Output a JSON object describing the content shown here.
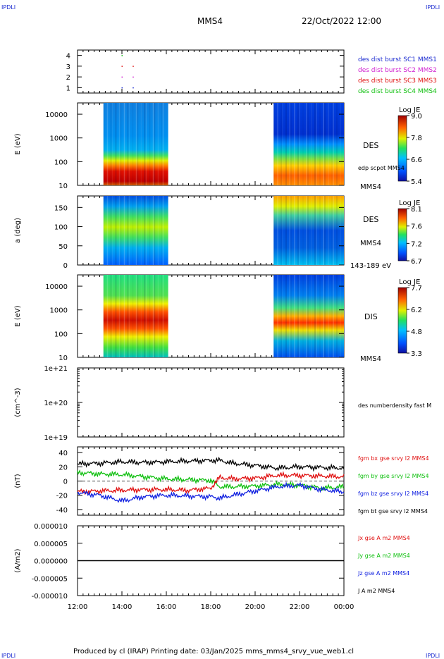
{
  "header": {
    "corner_tl": "IPDLI",
    "corner_tr": "IPDLI",
    "corner_bl": "IPDLI",
    "corner_br": "IPDLI",
    "spacecraft": "MMS4",
    "date": "22/Oct/2022 12:00"
  },
  "footer": {
    "text": "Produced by cl (IRAP)   Printing date: 03/Jan/2025   mms_mms4_srvy_vue_web1.cl"
  },
  "colors": {
    "c1": "#1a2ad0",
    "c2": "#d020d0",
    "c3": "#e01010",
    "c4": "#10c010",
    "bx": "#e01010",
    "by": "#10c010",
    "bz": "#1020e0",
    "bt": "#000000"
  },
  "chart_data": [
    {
      "type": "scatter",
      "panel": "burst",
      "y_ticks": [
        "1",
        "2",
        "3",
        "4"
      ],
      "ylim": [
        0.5,
        4.5
      ],
      "legend": [
        {
          "text": "des dist burst SC1 MMS1",
          "color": "#1a2ad0"
        },
        {
          "text": "des dist burst SC2 MMS2",
          "color": "#d020d0"
        },
        {
          "text": "des dist burst SC3 MMS3",
          "color": "#e01010"
        },
        {
          "text": "des dist burst SC4 MMS4",
          "color": "#10c010"
        }
      ],
      "points": [
        {
          "x": "14:00",
          "y": 4,
          "color": "#10c010"
        },
        {
          "x": "14:00",
          "y": 3,
          "color": "#e01010"
        },
        {
          "x": "14:30",
          "y": 3,
          "color": "#e01010"
        },
        {
          "x": "14:00",
          "y": 2,
          "color": "#d020d0"
        },
        {
          "x": "14:30",
          "y": 2,
          "color": "#d020d0"
        },
        {
          "x": "14:00",
          "y": 1,
          "color": "#1a2ad0"
        },
        {
          "x": "14:30",
          "y": 1,
          "color": "#1a2ad0"
        }
      ]
    },
    {
      "type": "heatmap",
      "panel": "des_energy",
      "ylabel": "E (eV)",
      "y_ticks": [
        "10",
        "100",
        "1000",
        "10000"
      ],
      "log_y": true,
      "ylim": [
        10,
        30000
      ],
      "label_right": "DES",
      "label_right2": "edp scpot MMS4",
      "label_bottom": "MMS4",
      "colorbar": {
        "title": "Log JE",
        "ticks": [
          "9.0",
          "7.8",
          "6.6",
          "5.4"
        ],
        "range": [
          5.4,
          9.0
        ]
      },
      "segments": [
        {
          "start": "13:10",
          "end": "16:05"
        },
        {
          "start": "20:50",
          "end": "00:00"
        }
      ]
    },
    {
      "type": "heatmap",
      "panel": "des_pitch",
      "ylabel": "a (deg)",
      "y_ticks": [
        "0",
        "50",
        "100",
        "150"
      ],
      "ylim": [
        0,
        180
      ],
      "label_right": "DES",
      "label_right2": "MMS4",
      "label_bottom": "143-189 eV",
      "colorbar": {
        "title": "Log JE",
        "ticks": [
          "8.1",
          "7.6",
          "7.2",
          "6.7"
        ],
        "range": [
          6.7,
          8.1
        ]
      },
      "segments": [
        {
          "start": "13:10",
          "end": "16:05"
        },
        {
          "start": "20:50",
          "end": "00:00"
        }
      ]
    },
    {
      "type": "heatmap",
      "panel": "dis_energy",
      "ylabel": "E (eV)",
      "y_ticks": [
        "10",
        "100",
        "1000",
        "10000"
      ],
      "log_y": true,
      "ylim": [
        10,
        30000
      ],
      "label_right": "DIS",
      "label_bottom": "MMS4",
      "colorbar": {
        "title": "Log JE",
        "ticks": [
          "7.7",
          "6.2",
          "4.8",
          "3.3"
        ],
        "range": [
          3.3,
          7.7
        ]
      },
      "segments": [
        {
          "start": "13:10",
          "end": "16:05"
        },
        {
          "start": "20:50",
          "end": "00:00"
        }
      ]
    },
    {
      "type": "line",
      "panel": "density",
      "ylabel": "(cm^-3)",
      "y_ticks": [
        "1e+19",
        "1e+20",
        "1e+21"
      ],
      "log_y": true,
      "legend": [
        {
          "text": "des numberdensity fast M",
          "color": "#000000"
        }
      ],
      "series": []
    },
    {
      "type": "line",
      "panel": "fgm",
      "ylabel": "(nT)",
      "y_ticks": [
        "-40",
        "-20",
        "0",
        "20",
        "40"
      ],
      "ylim": [
        -48,
        48
      ],
      "legend": [
        {
          "text": "fgm bx gse srvy l2 MMS4",
          "color": "#e01010"
        },
        {
          "text": "fgm by gse srvy l2 MMS4",
          "color": "#10c010"
        },
        {
          "text": "fgm bz gse srvy l2 MMS4",
          "color": "#1020e0"
        },
        {
          "text": "fgm bt gse srvy l2 MMS4",
          "color": "#000000"
        }
      ],
      "series": [
        {
          "name": "bx",
          "color": "#e01010",
          "x": [
            12,
            13,
            14,
            15,
            16,
            17,
            18,
            18.4,
            19,
            20,
            21,
            22,
            23,
            24
          ],
          "values": [
            -15,
            -14,
            -13,
            -12,
            -12,
            -13,
            -10,
            5,
            3,
            4,
            8,
            8,
            7,
            6
          ]
        },
        {
          "name": "by",
          "color": "#10c010",
          "x": [
            12,
            13,
            14,
            15,
            16,
            17,
            18,
            18.4,
            19,
            20,
            21,
            22,
            23,
            24
          ],
          "values": [
            12,
            10,
            9,
            6,
            3,
            2,
            1,
            -8,
            -8,
            -7,
            -5,
            -6,
            -10,
            -8
          ]
        },
        {
          "name": "bz",
          "color": "#1020e0",
          "x": [
            12,
            13,
            14,
            15,
            16,
            17,
            18,
            18.4,
            19,
            20,
            21,
            22,
            23,
            24
          ],
          "values": [
            -16,
            -20,
            -28,
            -22,
            -20,
            -21,
            -22,
            -24,
            -20,
            -14,
            -8,
            -6,
            -12,
            -15
          ]
        },
        {
          "name": "bt",
          "color": "#000000",
          "x": [
            12,
            13,
            14,
            15,
            16,
            17,
            18,
            18.4,
            19,
            20,
            21,
            22,
            23,
            24
          ],
          "values": [
            24,
            25,
            27,
            26,
            27,
            28,
            29,
            29,
            25,
            22,
            18,
            20,
            19,
            18
          ]
        }
      ]
    },
    {
      "type": "line",
      "panel": "current",
      "ylabel": "(A/m2)",
      "y_ticks": [
        "-0.000010",
        "-0.000005",
        "0.000000",
        "0.000005",
        "0.000010"
      ],
      "ylim": [
        -1e-05,
        1e-05
      ],
      "legend": [
        {
          "text": "Jx gse A m2 MMS4",
          "color": "#e01010"
        },
        {
          "text": "Jy gse A m2 MMS4",
          "color": "#10c010"
        },
        {
          "text": "Jz gse A m2 MMS4",
          "color": "#1020e0"
        },
        {
          "text": "J A m2 MMS4",
          "color": "#000000"
        }
      ],
      "series": [
        {
          "name": "J",
          "color": "#000000",
          "x": [
            12,
            24
          ],
          "values": [
            0,
            0
          ]
        }
      ]
    }
  ],
  "x_ticks": [
    "12:00",
    "14:00",
    "16:00",
    "18:00",
    "20:00",
    "22:00",
    "00:00"
  ],
  "xlim": [
    "12:00",
    "00:00"
  ]
}
